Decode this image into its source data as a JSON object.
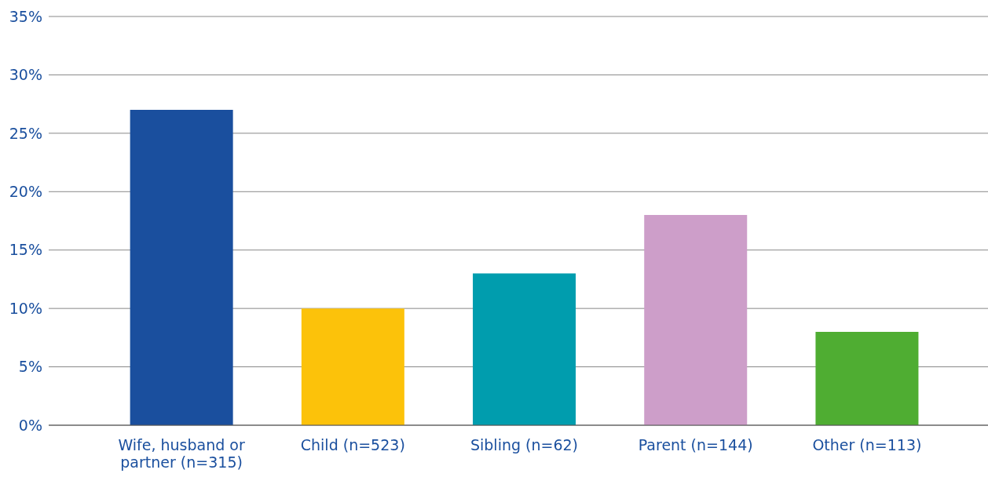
{
  "chart_data": {
    "type": "bar",
    "categories": [
      "Wife, husband or partner (n=315)",
      "Child (n=523)",
      "Sibling (n=62)",
      "Parent (n=144)",
      "Other (n=113)"
    ],
    "values": [
      27,
      10,
      13,
      18,
      8
    ],
    "colors": [
      "#1a4f9e",
      "#fcc20a",
      "#009dae",
      "#cd9ec9",
      "#4fad32"
    ],
    "ylim": [
      0,
      35
    ],
    "yticks": [
      {
        "value": 0,
        "label": "0%"
      },
      {
        "value": 5,
        "label": "5%"
      },
      {
        "value": 10,
        "label": "10%"
      },
      {
        "value": 15,
        "label": "15%"
      },
      {
        "value": 20,
        "label": "20%"
      },
      {
        "value": 25,
        "label": "25%"
      },
      {
        "value": 30,
        "label": "30%"
      },
      {
        "value": 35,
        "label": "35%"
      }
    ],
    "grid": "y"
  }
}
